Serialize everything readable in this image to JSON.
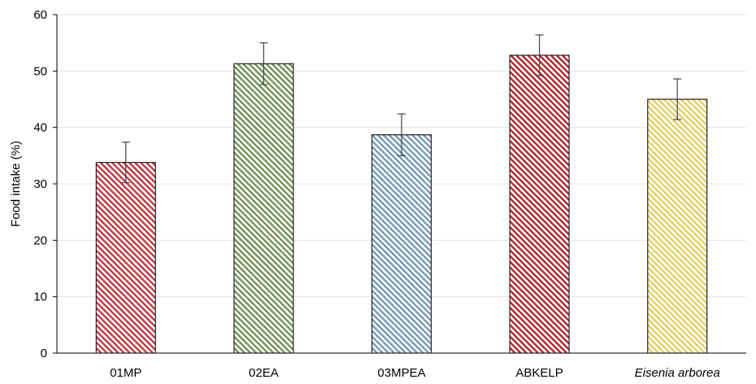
{
  "chart_data": {
    "type": "bar",
    "title": "",
    "xlabel": "",
    "ylabel": "Food intake (%)",
    "ylim": [
      0,
      60
    ],
    "yticks": [
      0,
      10,
      20,
      30,
      40,
      50,
      60
    ],
    "grid": true,
    "categories": [
      "01MP",
      "02EA",
      "03MPEA",
      "ABKELP",
      "Eisenia arborea"
    ],
    "italic_categories": [
      "Eisenia arborea"
    ],
    "values": [
      33.8,
      51.3,
      38.7,
      52.8,
      45.0
    ],
    "errors": [
      3.6,
      3.7,
      3.7,
      3.6,
      3.6
    ],
    "colors": [
      "#c0303a",
      "#6b8f4e",
      "#6f95b8",
      "#b01c24",
      "#e2cc5c"
    ],
    "hatch": "diagonal"
  }
}
